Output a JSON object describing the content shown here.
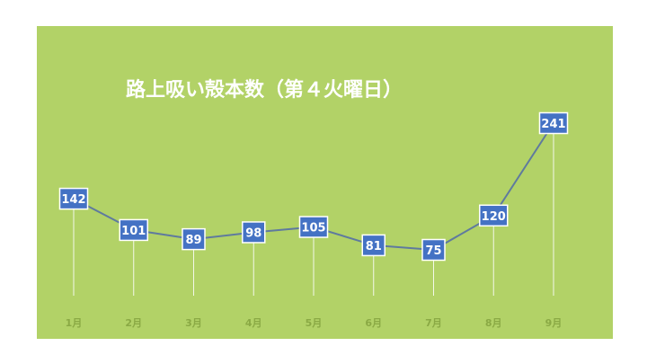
{
  "chart_data": {
    "type": "line",
    "title": "路上吸い殻本数（第４火曜日）",
    "categories": [
      "1月",
      "2月",
      "3月",
      "4月",
      "5月",
      "6月",
      "7月",
      "8月",
      "9月"
    ],
    "series": [
      {
        "values": [
          142,
          101,
          89,
          98,
          105,
          81,
          75,
          120,
          241
        ]
      }
    ],
    "colors": {
      "background": "#b2d267",
      "line": "#5f7a9e",
      "marker": "#4472c4",
      "drop_line": "#ffffff",
      "tick_label": "#8aa944",
      "text": "#ffffff"
    },
    "grid": false,
    "legend": "none",
    "show_data_labels": true,
    "drop_lines": true
  }
}
